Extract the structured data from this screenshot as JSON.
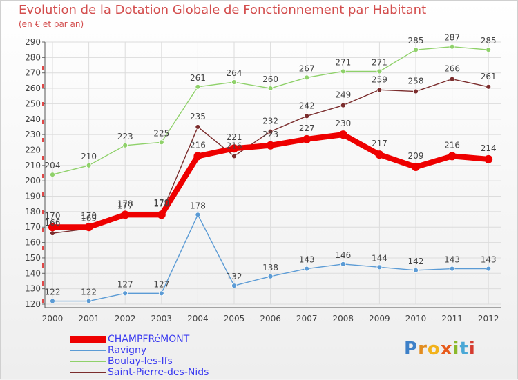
{
  "title": "Evolution de la Dotation Globale de Fonctionnement par Habitant",
  "subtitle": "(en € et par an)",
  "logo": "Proxiti",
  "logo_letters": [
    "P",
    "r",
    "o",
    "x",
    "i",
    "t",
    "i"
  ],
  "chart_data": {
    "type": "line",
    "title": "Evolution de la Dotation Globale de Fonctionnement par Habitant",
    "ylabel": "(en € et par an)",
    "xlabel": "",
    "ylim": [
      120,
      290
    ],
    "yticks": [
      120,
      130,
      140,
      150,
      160,
      170,
      180,
      190,
      200,
      210,
      220,
      230,
      240,
      250,
      260,
      270,
      280,
      290
    ],
    "categories": [
      "2000",
      "2001",
      "2002",
      "2003",
      "2004",
      "2005",
      "2006",
      "2007",
      "2008",
      "2009",
      "2010",
      "2011",
      "2012"
    ],
    "grid": true,
    "legend_position": "bottom-left",
    "series": [
      {
        "name": "CHAMPFRéMONT",
        "color": "#ee0000",
        "values": [
          170,
          170,
          178,
          178,
          216,
          221,
          223,
          227,
          230,
          217,
          209,
          216,
          214
        ]
      },
      {
        "name": "Ravigny",
        "color": "#5b9bd5",
        "values": [
          122,
          122,
          127,
          127,
          178,
          132,
          138,
          143,
          146,
          144,
          142,
          143,
          143
        ]
      },
      {
        "name": "Boulay-les-Ifs",
        "color": "#8fd16a",
        "values": [
          204,
          210,
          223,
          225,
          261,
          264,
          260,
          267,
          271,
          271,
          285,
          287,
          285
        ]
      },
      {
        "name": "Saint-Pierre-des-Nids",
        "color": "#7b2d2d",
        "values": [
          166,
          169,
          177,
          179,
          235,
          216,
          232,
          242,
          249,
          259,
          258,
          266,
          261
        ]
      }
    ]
  }
}
